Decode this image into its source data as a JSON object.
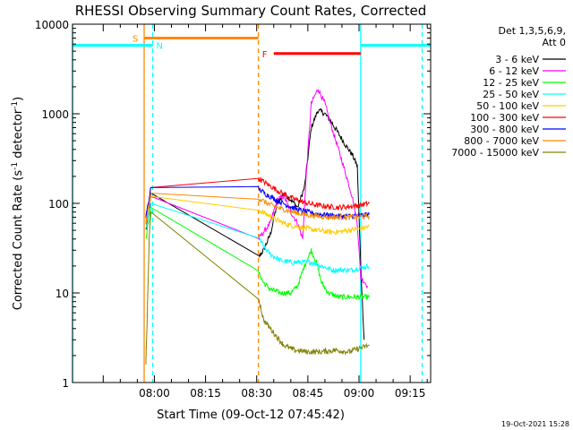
{
  "chart_data": {
    "type": "line",
    "title": "RHESSI Observing Summary Count Rates, Corrected",
    "xlabel": "Start Time (09-Oct-12 07:45:42)",
    "ylabel": "Corrected Count Rate (s",
    "ylabel_sup1": "-1",
    "ylabel_mid": " detector",
    "ylabel_sup2": "-1",
    "ylabel_end": ")",
    "y_scale": "log",
    "ylim": [
      1,
      10000
    ],
    "xlim_minutes": [
      -9,
      96
    ],
    "x_ticks": [
      {
        "label": "08:00",
        "min": 15
      },
      {
        "label": "08:15",
        "min": 30
      },
      {
        "label": "08:30",
        "min": 45
      },
      {
        "label": "08:45",
        "min": 60
      },
      {
        "label": "09:00",
        "min": 75
      },
      {
        "label": "09:15",
        "min": 90
      }
    ],
    "y_ticks": [
      {
        "label": "1",
        "v": 1
      },
      {
        "label": "10",
        "v": 10
      },
      {
        "label": "100",
        "v": 100
      },
      {
        "label": "1000",
        "v": 1000
      },
      {
        "label": "10000",
        "v": 10000
      }
    ],
    "legend_title": [
      "Det 1,3,5,6,9,",
      "Att 0"
    ],
    "legend_position": "top-right",
    "series": [
      {
        "name": "3 - 6 keV",
        "color": "#000000",
        "values": [
          [
            12.5,
            50
          ],
          [
            13.5,
            80
          ],
          [
            14.0,
            130
          ],
          [
            45.5,
            25
          ],
          [
            47,
            30
          ],
          [
            49,
            45
          ],
          [
            51,
            100
          ],
          [
            53,
            130
          ],
          [
            55,
            110
          ],
          [
            57,
            90
          ],
          [
            59,
            150
          ],
          [
            61,
            700
          ],
          [
            63,
            1100
          ],
          [
            65,
            1000
          ],
          [
            67,
            800
          ],
          [
            69,
            600
          ],
          [
            71,
            450
          ],
          [
            73,
            350
          ],
          [
            74.5,
            260
          ],
          [
            75.5,
            20
          ],
          [
            76.5,
            3
          ]
        ]
      },
      {
        "name": "6 - 12 keV",
        "color": "#ff00ff",
        "values": [
          [
            12.5,
            60
          ],
          [
            14,
            120
          ],
          [
            45.5,
            40
          ],
          [
            49,
            60
          ],
          [
            51,
            110
          ],
          [
            53,
            120
          ],
          [
            55,
            80
          ],
          [
            57,
            60
          ],
          [
            58.5,
            40
          ],
          [
            59.5,
            200
          ],
          [
            61,
            1300
          ],
          [
            63,
            1900
          ],
          [
            65,
            1300
          ],
          [
            67,
            700
          ],
          [
            69,
            400
          ],
          [
            71,
            220
          ],
          [
            73,
            120
          ],
          [
            74.5,
            60
          ],
          [
            75.5,
            15
          ],
          [
            77.5,
            12
          ]
        ]
      },
      {
        "name": "12 - 25 keV",
        "color": "#00ff00",
        "values": [
          [
            12.5,
            40
          ],
          [
            14,
            90
          ],
          [
            45.5,
            17
          ],
          [
            47,
            13
          ],
          [
            49,
            11
          ],
          [
            52,
            10
          ],
          [
            55,
            10
          ],
          [
            57,
            12
          ],
          [
            59,
            20
          ],
          [
            61,
            30
          ],
          [
            62.5,
            22
          ],
          [
            64,
            13
          ],
          [
            66,
            10
          ],
          [
            69,
            9
          ],
          [
            72,
            9
          ],
          [
            75,
            9
          ],
          [
            78,
            9
          ]
        ]
      },
      {
        "name": "25 - 50 keV",
        "color": "#00ffff",
        "values": [
          [
            12.5,
            50
          ],
          [
            14,
            100
          ],
          [
            45.5,
            42
          ],
          [
            47,
            33
          ],
          [
            49,
            27
          ],
          [
            52,
            23
          ],
          [
            55,
            22
          ],
          [
            58,
            22
          ],
          [
            61,
            22
          ],
          [
            64,
            20
          ],
          [
            67,
            18
          ],
          [
            70,
            18
          ],
          [
            73,
            18
          ],
          [
            75,
            19
          ],
          [
            78,
            20
          ]
        ]
      },
      {
        "name": "50 - 100 keV",
        "color": "#ffcc00",
        "values": [
          [
            12.5,
            60
          ],
          [
            14,
            120
          ],
          [
            45.5,
            85
          ],
          [
            48,
            75
          ],
          [
            51,
            65
          ],
          [
            54,
            58
          ],
          [
            57,
            55
          ],
          [
            60,
            52
          ],
          [
            63,
            50
          ],
          [
            66,
            48
          ],
          [
            69,
            48
          ],
          [
            72,
            50
          ],
          [
            75,
            52
          ],
          [
            78,
            55
          ]
        ]
      },
      {
        "name": "100 - 300 keV",
        "color": "#ff0000",
        "values": [
          [
            12.5,
            70
          ],
          [
            14,
            150
          ],
          [
            45.5,
            190
          ],
          [
            48,
            165
          ],
          [
            51,
            140
          ],
          [
            54,
            120
          ],
          [
            57,
            108
          ],
          [
            60,
            100
          ],
          [
            63,
            95
          ],
          [
            66,
            92
          ],
          [
            69,
            90
          ],
          [
            72,
            92
          ],
          [
            75,
            95
          ],
          [
            78,
            100
          ]
        ]
      },
      {
        "name": "300 - 800 keV",
        "color": "#0000ff",
        "values": [
          [
            12.5,
            70
          ],
          [
            14,
            150
          ],
          [
            45.5,
            145
          ],
          [
            48,
            125
          ],
          [
            51,
            108
          ],
          [
            54,
            95
          ],
          [
            57,
            85
          ],
          [
            60,
            80
          ],
          [
            63,
            76
          ],
          [
            66,
            74
          ],
          [
            69,
            72
          ],
          [
            72,
            72
          ],
          [
            75,
            73
          ],
          [
            78,
            75
          ]
        ]
      },
      {
        "name": "800 - 7000 keV",
        "color": "#ff8800",
        "values": [
          [
            12.5,
            60
          ],
          [
            14,
            130
          ],
          [
            45.5,
            115
          ],
          [
            48,
            100
          ],
          [
            51,
            90
          ],
          [
            54,
            83
          ],
          [
            57,
            78
          ],
          [
            60,
            74
          ],
          [
            63,
            72
          ],
          [
            66,
            70
          ],
          [
            69,
            70
          ],
          [
            72,
            70
          ],
          [
            75,
            71
          ],
          [
            78,
            72
          ]
        ]
      },
      {
        "name": "7000 - 15000 keV",
        "color": "#808000",
        "values": [
          [
            12.5,
            1.5
          ],
          [
            13.5,
            40
          ],
          [
            14,
            80
          ],
          [
            45.5,
            9
          ],
          [
            47,
            5
          ],
          [
            49,
            4
          ],
          [
            51,
            3.2
          ],
          [
            53,
            2.6
          ],
          [
            56,
            2.3
          ],
          [
            60,
            2.2
          ],
          [
            64,
            2.2
          ],
          [
            68,
            2.3
          ],
          [
            72,
            2.2
          ],
          [
            75,
            2.4
          ],
          [
            78,
            2.6
          ]
        ]
      }
    ],
    "annotations": [
      {
        "label": "S",
        "color": "#ff8800",
        "y": 7000,
        "start": 12,
        "end": 45.5
      },
      {
        "label": "N",
        "color": "#00ffff",
        "y": 5800
      },
      {
        "label": "F",
        "color": "#ff0000",
        "y": 4700,
        "start": 50,
        "end": 75.5
      }
    ],
    "night_bars": [
      {
        "color": "#00ffff",
        "y": 5800,
        "start": -9,
        "end": 14.5
      },
      {
        "color": "#00ffff",
        "y": 5800,
        "start": 75.5,
        "end": 96
      }
    ],
    "vlines": [
      {
        "min": -9,
        "color": "#00ffff",
        "style": "solid"
      },
      {
        "min": 14.5,
        "color": "#00ffff",
        "style": "dashed"
      },
      {
        "min": 75.5,
        "color": "#00ffff",
        "style": "solid"
      },
      {
        "min": 93.5,
        "color": "#00ffff",
        "style": "dashed"
      },
      {
        "min": 12,
        "color": "#ff8800",
        "style": "solid"
      },
      {
        "min": 45.5,
        "color": "#ff8800",
        "style": "dashed"
      }
    ]
  },
  "footer_timestamp": "19-Oct-2021 15:28"
}
